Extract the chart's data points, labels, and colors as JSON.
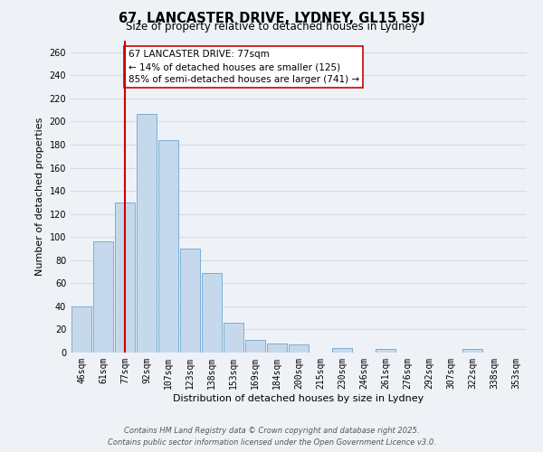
{
  "title": "67, LANCASTER DRIVE, LYDNEY, GL15 5SJ",
  "subtitle": "Size of property relative to detached houses in Lydney",
  "xlabel": "Distribution of detached houses by size in Lydney",
  "ylabel": "Number of detached properties",
  "bar_labels": [
    "46sqm",
    "61sqm",
    "77sqm",
    "92sqm",
    "107sqm",
    "123sqm",
    "138sqm",
    "153sqm",
    "169sqm",
    "184sqm",
    "200sqm",
    "215sqm",
    "230sqm",
    "246sqm",
    "261sqm",
    "276sqm",
    "292sqm",
    "307sqm",
    "322sqm",
    "338sqm",
    "353sqm"
  ],
  "bar_values": [
    40,
    96,
    130,
    207,
    184,
    90,
    69,
    26,
    11,
    8,
    7,
    0,
    4,
    0,
    3,
    0,
    0,
    0,
    3,
    0,
    0
  ],
  "bar_color": "#c6d9ec",
  "bar_edge_color": "#7aaed4",
  "grid_color": "#d0dde8",
  "vline_x_idx": 2,
  "vline_color": "#cc0000",
  "annotation_title": "67 LANCASTER DRIVE: 77sqm",
  "annotation_line1": "← 14% of detached houses are smaller (125)",
  "annotation_line2": "85% of semi-detached houses are larger (741) →",
  "annotation_box_facecolor": "#ffffff",
  "annotation_box_edgecolor": "#cc0000",
  "ylim": [
    0,
    270
  ],
  "yticks": [
    0,
    20,
    40,
    60,
    80,
    100,
    120,
    140,
    160,
    180,
    200,
    220,
    240,
    260
  ],
  "footer_line1": "Contains HM Land Registry data © Crown copyright and database right 2025.",
  "footer_line2": "Contains public sector information licensed under the Open Government Licence v3.0.",
  "bg_color": "#eef2f7",
  "title_fontsize": 10.5,
  "subtitle_fontsize": 8.5,
  "axis_label_fontsize": 8,
  "tick_fontsize": 7,
  "annotation_fontsize": 7.5,
  "footer_fontsize": 6
}
